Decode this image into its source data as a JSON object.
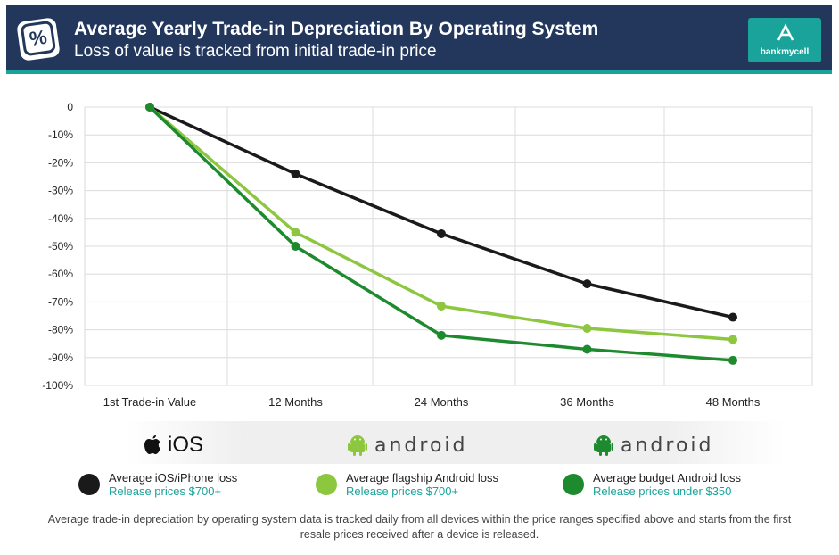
{
  "header": {
    "badge_symbol": "%",
    "title": "Average Yearly Trade-in Depreciation By Operating System",
    "subtitle": "Loss of value is tracked from initial trade-in price",
    "brand_name": "bankmycell",
    "background": "#23375d",
    "accent": "#1aa39b"
  },
  "chart_data": {
    "type": "line",
    "title": "Average Yearly Trade-in Depreciation By Operating System",
    "xlabel": "",
    "ylabel": "",
    "categories": [
      "1st Trade-in Value",
      "12 Months",
      "24 Months",
      "36 Months",
      "48 Months"
    ],
    "ylim": [
      -100,
      0
    ],
    "y_ticks": [
      0,
      -10,
      -20,
      -30,
      -40,
      -50,
      -60,
      -70,
      -80,
      -90,
      -100
    ],
    "y_tick_labels": [
      "0",
      "-10%",
      "-20%",
      "-30%",
      "-40%",
      "-50%",
      "-60%",
      "-70%",
      "-80%",
      "-90%",
      "-100%"
    ],
    "grid": true,
    "series": [
      {
        "name": "Average iOS/iPhone loss",
        "color": "#1a1a1a",
        "values": [
          0,
          -24,
          -45.5,
          -63.5,
          -75.5
        ]
      },
      {
        "name": "Average flagship Android loss",
        "color": "#8dc63f",
        "values": [
          0,
          -45,
          -71.5,
          -79.5,
          -83.5
        ]
      },
      {
        "name": "Average budget Android loss",
        "color": "#1e8a2e",
        "values": [
          0,
          -50,
          -82,
          -87,
          -91
        ]
      }
    ]
  },
  "legend": {
    "os_labels": {
      "ios": "iOS",
      "android_flagship": "android",
      "android_budget": "android"
    },
    "items": [
      {
        "label": "Average iOS/iPhone loss",
        "sub": "Release prices $700+",
        "color": "#1a1a1a",
        "icon": "apple-icon"
      },
      {
        "label": "Average flagship Android loss",
        "sub": "Release prices $700+",
        "color": "#8dc63f",
        "icon": "android-icon"
      },
      {
        "label": "Average budget Android loss",
        "sub": "Release prices under $350",
        "color": "#1e8a2e",
        "icon": "android-icon"
      }
    ]
  },
  "footnote": "Average trade-in depreciation by operating system data is tracked daily from all devices within the price ranges specified above and starts from the first resale prices received after a device is released."
}
